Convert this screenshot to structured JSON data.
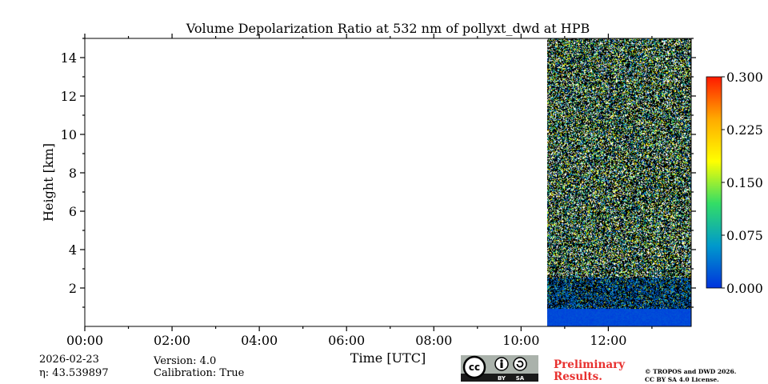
{
  "chart_data": {
    "type": "heatmap",
    "title": "Volume Depolarization Ratio at 532 nm of pollyxt_dwd at HPB",
    "xlabel": "Time [UTC]",
    "ylabel": "Height [km]",
    "x_range_hours": [
      0,
      13.9
    ],
    "y_range_km": [
      0,
      15
    ],
    "x_ticks": [
      "00:00",
      "02:00",
      "04:00",
      "06:00",
      "08:00",
      "10:00",
      "12:00"
    ],
    "x_tick_values_hours": [
      0,
      2,
      4,
      6,
      8,
      10,
      12
    ],
    "y_ticks": [
      "2",
      "4",
      "6",
      "8",
      "10",
      "12",
      "14"
    ],
    "y_tick_values_km": [
      2,
      4,
      6,
      8,
      10,
      12,
      14
    ],
    "data_start_hour": 10.6,
    "data_end_hour": 13.9,
    "boundary_layer_top_km": 0.9,
    "boundary_layer_value": 0.0,
    "colorbar": {
      "min": 0.0,
      "max": 0.3,
      "ticks": [
        "0.000",
        "0.075",
        "0.150",
        "0.225",
        "0.300"
      ],
      "tick_values": [
        0.0,
        0.075,
        0.15,
        0.225,
        0.3
      ],
      "colors": [
        "#0033dd",
        "#0099cc",
        "#33dd66",
        "#ffff00",
        "#ffaa00",
        "#ff1a00"
      ]
    }
  },
  "meta": {
    "date": "2026-02-23",
    "eta": "η: 43.539897",
    "version": "Version: 4.0",
    "calibration": "Calibration: True",
    "preliminary_line1": "Preliminary",
    "preliminary_line2": "Results.",
    "copyright_line1": "© TROPOS and DWD 2026.",
    "copyright_line2": "CC BY SA 4.0 License."
  },
  "license_badge": {
    "cc": "cc",
    "by": "BY",
    "sa": "SA"
  }
}
